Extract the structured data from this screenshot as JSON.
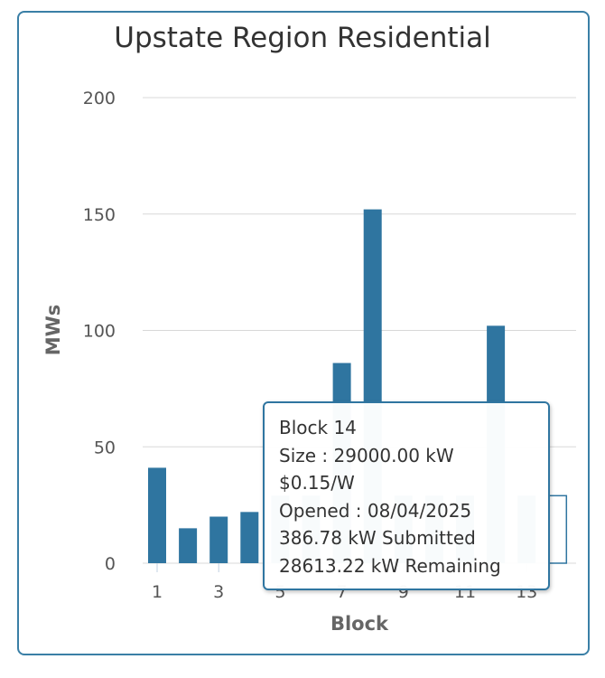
{
  "chart_data": {
    "type": "bar",
    "title": "Upstate Region Residential",
    "xlabel": "Block",
    "ylabel": "MWs",
    "ylim": [
      0,
      200
    ],
    "y_ticks": [
      "0",
      "50",
      "100",
      "150",
      "200"
    ],
    "x_tick_labels": [
      "1",
      "3",
      "5",
      "7",
      "9",
      "11",
      "13"
    ],
    "categories": [
      "1",
      "2",
      "3",
      "4",
      "5",
      "6",
      "7",
      "8",
      "9",
      "10",
      "11",
      "12",
      "13",
      "14"
    ],
    "values": [
      41,
      15,
      20,
      22,
      29,
      29,
      86,
      152,
      29,
      29,
      29,
      102,
      29,
      29
    ],
    "grid": true,
    "highlighted_block": "14"
  },
  "colors": {
    "bar": "#2f75a0",
    "grid": "#d8d8d8",
    "axis_text": "#555555",
    "tooltip_border": "#2f75a0"
  },
  "tooltip": {
    "line1": "Block 14",
    "line2": "Size : 29000.00 kW",
    "line3": "$0.15/W",
    "line4": "Opened : 08/04/2025",
    "line5": "386.78 kW Submitted",
    "line6": "28613.22 kW Remaining"
  }
}
